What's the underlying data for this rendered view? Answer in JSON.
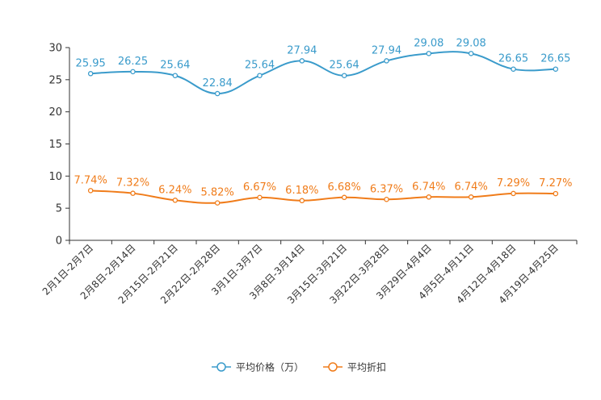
{
  "chart_data": {
    "type": "line",
    "title": "",
    "xlabel": "",
    "ylabel": "",
    "ylim": [
      0,
      30
    ],
    "yticks": [
      0,
      5,
      10,
      15,
      20,
      25,
      30
    ],
    "grid": false,
    "legend_position": "bottom-center",
    "categories": [
      "2月1日-2月7日",
      "2月8日-2月14日",
      "2月15日-2月21日",
      "2月22日-2月28日",
      "3月1日-3月7日",
      "3月8日-3月14日",
      "3月15日-3月21日",
      "3月22日-3月28日",
      "3月29日-4月4日",
      "4月5日-4月11日",
      "4月12日-4月18日",
      "4月19日-4月25日"
    ],
    "series": [
      {
        "name": "平均价格（万）",
        "color": "#3a9bcb",
        "values": [
          25.95,
          26.25,
          25.64,
          22.84,
          25.64,
          27.94,
          25.64,
          27.94,
          29.08,
          29.08,
          26.65,
          26.65
        ],
        "labels": [
          "25.95",
          "26.25",
          "25.64",
          "22.84",
          "25.64",
          "27.94",
          "25.64",
          "27.94",
          "29.08",
          "29.08",
          "26.65",
          "26.65"
        ]
      },
      {
        "name": "平均折扣",
        "color": "#f07c1a",
        "values": [
          7.74,
          7.32,
          6.24,
          5.82,
          6.67,
          6.18,
          6.68,
          6.37,
          6.74,
          6.74,
          7.29,
          7.27
        ],
        "labels": [
          "7.74%",
          "7.32%",
          "6.24%",
          "5.82%",
          "6.67%",
          "6.18%",
          "6.68%",
          "6.37%",
          "6.74%",
          "6.74%",
          "7.29%",
          "7.27%"
        ]
      }
    ]
  }
}
